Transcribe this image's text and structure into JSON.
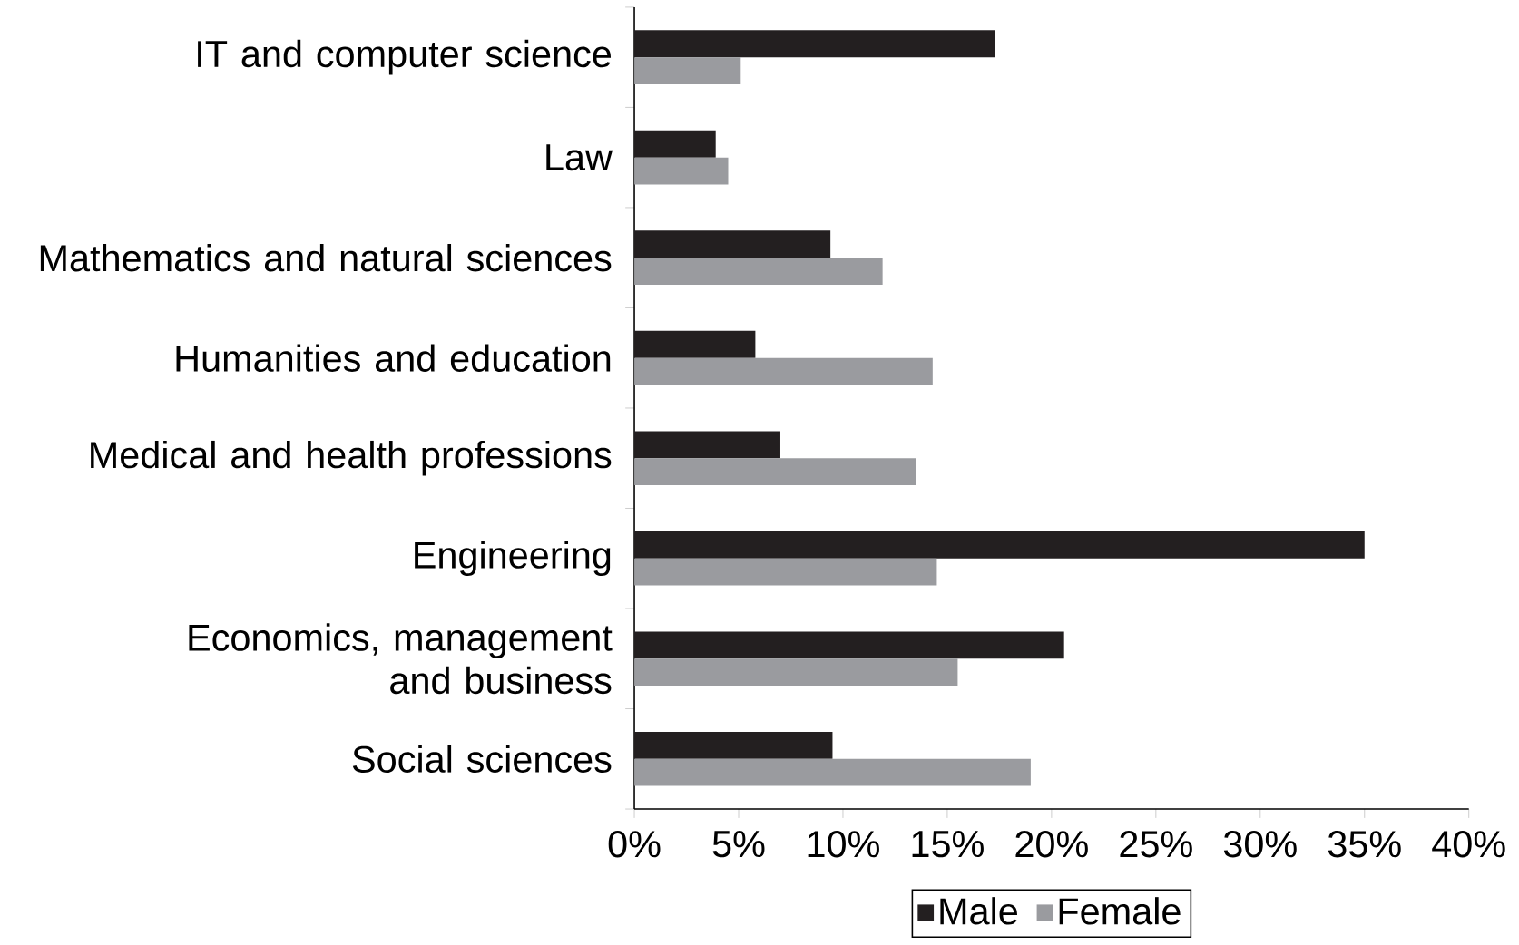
{
  "chart_data": {
    "type": "bar",
    "orientation": "horizontal",
    "categories": [
      "IT and computer science",
      "Law",
      "Mathematics and natural sciences",
      "Humanities and education",
      "Medical and health professions",
      "Engineering",
      "Economics, management and business",
      "Social sciences"
    ],
    "series": [
      {
        "name": "Male",
        "color": "#231f20",
        "values": [
          17.3,
          3.9,
          9.4,
          5.8,
          7.0,
          35.0,
          20.6,
          9.5
        ]
      },
      {
        "name": "Female",
        "color": "#9a9b9f",
        "values": [
          5.1,
          4.5,
          11.9,
          14.3,
          13.5,
          14.5,
          15.5,
          19.0
        ]
      }
    ],
    "xlim": [
      0,
      40
    ],
    "xticks": [
      {
        "value": 0,
        "label": "0%"
      },
      {
        "value": 5,
        "label": "5%"
      },
      {
        "value": 10,
        "label": "10%"
      },
      {
        "value": 15,
        "label": "15%"
      },
      {
        "value": 20,
        "label": "20%"
      },
      {
        "value": 25,
        "label": "25%"
      },
      {
        "value": 30,
        "label": "30%"
      },
      {
        "value": 35,
        "label": "35%"
      },
      {
        "value": 40,
        "label": "40%"
      }
    ],
    "legend": "bottom",
    "grid": false
  }
}
